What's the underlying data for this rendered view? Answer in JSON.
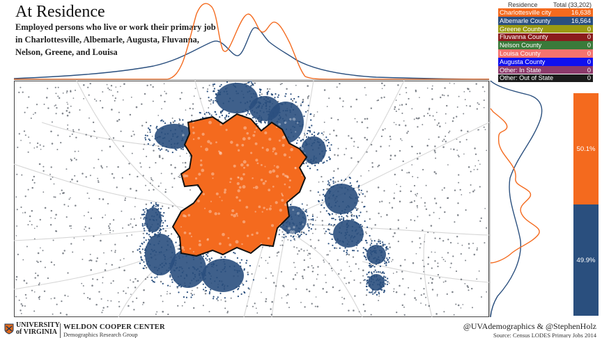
{
  "header": {
    "title": "At Residence",
    "subtitle": "Employed persons who live or work their primary job in Charlottesville, Albemarle, Augusta, Fluvanna, Nelson, Greene, and Louisa"
  },
  "legend": {
    "col_label": "Residence",
    "total_label": "Total (33,202)",
    "rows": [
      {
        "name": "Charlottesville city",
        "value": "16,638",
        "color": "#f46a1e"
      },
      {
        "name": "Albemarle County",
        "value": "16,564",
        "color": "#2a4f7e"
      },
      {
        "name": "Greene County",
        "value": "0",
        "color": "#9a9a12"
      },
      {
        "name": "Fluvanna County",
        "value": "0",
        "color": "#8b1c1c"
      },
      {
        "name": "Nelson County",
        "value": "0",
        "color": "#3a7a3a"
      },
      {
        "name": "Louisa County",
        "value": "0",
        "color": "#f5736e"
      },
      {
        "name": "Augusta County",
        "value": "0",
        "color": "#1010ee"
      },
      {
        "name": "Other: In State",
        "value": "0",
        "color": "#8c3a6b"
      },
      {
        "name": "Other: Out of State",
        "value": "0",
        "color": "#1b1b1b"
      }
    ]
  },
  "share_bar": {
    "segments": [
      {
        "label": "50.1%",
        "share": 0.501,
        "color": "#f46a1e"
      },
      {
        "label": "49.9%",
        "share": 0.499,
        "color": "#2a4f7e"
      }
    ]
  },
  "colors": {
    "charlottesville": "#f46a1e",
    "albemarle": "#2a4f7e",
    "gray_dot": "#555c66",
    "road": "#d6d6d6",
    "boundary": "#111111"
  },
  "footer": {
    "uva_line1": "UNIVERSITY",
    "uva_line2": "of VIRGINIA",
    "center_name": "WELDON COOPER CENTER",
    "center_sub": "Demographics Research Group",
    "handle": "@UVAdemographics & @StephenHolz",
    "source": "Source: Census LODES Primary Jobs 2014"
  }
}
